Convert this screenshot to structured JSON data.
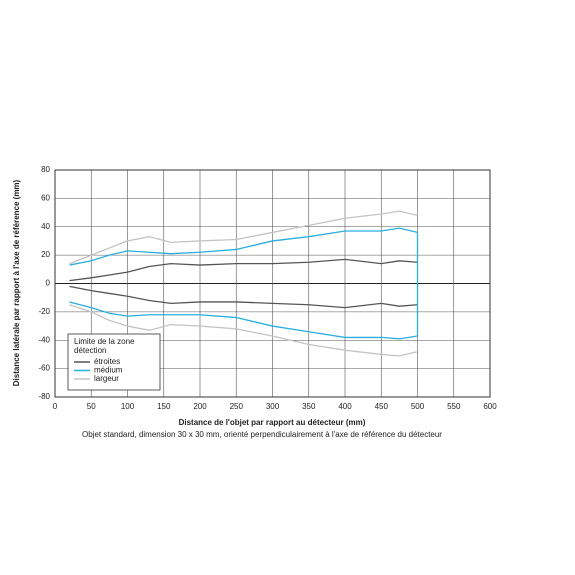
{
  "chart_data": {
    "type": "line",
    "xlabel": "Distance de l'objet par rapport au détecteur (mm)",
    "ylabel": "Distance latérale par rapport à l'axe de référence (mm)",
    "caption": "Objet standard, dimension 30 x 30 mm, orienté perpendiculairement à l'axe de référence du détecteur",
    "legend_title": [
      "Limite de la zone",
      "détection"
    ],
    "x": [
      20,
      50,
      75,
      100,
      130,
      160,
      200,
      250,
      300,
      350,
      400,
      450,
      475,
      500
    ],
    "series": [
      {
        "name": "étroites",
        "color": "#555555",
        "values": [
          2,
          4,
          6,
          8,
          12,
          14,
          13,
          14,
          14,
          15,
          17,
          14,
          16,
          15
        ],
        "lower_values": [
          -2,
          -5,
          -7,
          -9,
          -12,
          -14,
          -13,
          -13,
          -14,
          -15,
          -17,
          -14,
          -16,
          -15
        ]
      },
      {
        "name": "médium",
        "color": "#29aee0",
        "closed": true,
        "values": [
          13,
          16,
          20,
          23,
          22,
          21,
          22,
          24,
          30,
          33,
          37,
          37,
          39,
          36
        ],
        "lower_values": [
          -13,
          -17,
          -21,
          -23,
          -22,
          -22,
          -22,
          -24,
          -30,
          -34,
          -38,
          -38,
          -39,
          -37
        ]
      },
      {
        "name": "largeur",
        "color": "#c4c4c4",
        "values": [
          14,
          20,
          25,
          30,
          33,
          29,
          30,
          31,
          36,
          41,
          46,
          49,
          51,
          48
        ],
        "lower_values": [
          -15,
          -20,
          -26,
          -30,
          -33,
          -29,
          -30,
          -32,
          -37,
          -43,
          -47,
          -50,
          -51,
          -48
        ]
      }
    ],
    "xlim": [
      0,
      600
    ],
    "xticks": [
      0,
      50,
      100,
      150,
      200,
      250,
      300,
      350,
      400,
      450,
      500,
      550,
      600
    ],
    "ylim": [
      -80,
      80
    ],
    "yticks": [
      -80,
      -60,
      -40,
      -20,
      0,
      20,
      40,
      60,
      80
    ],
    "grid": true
  }
}
